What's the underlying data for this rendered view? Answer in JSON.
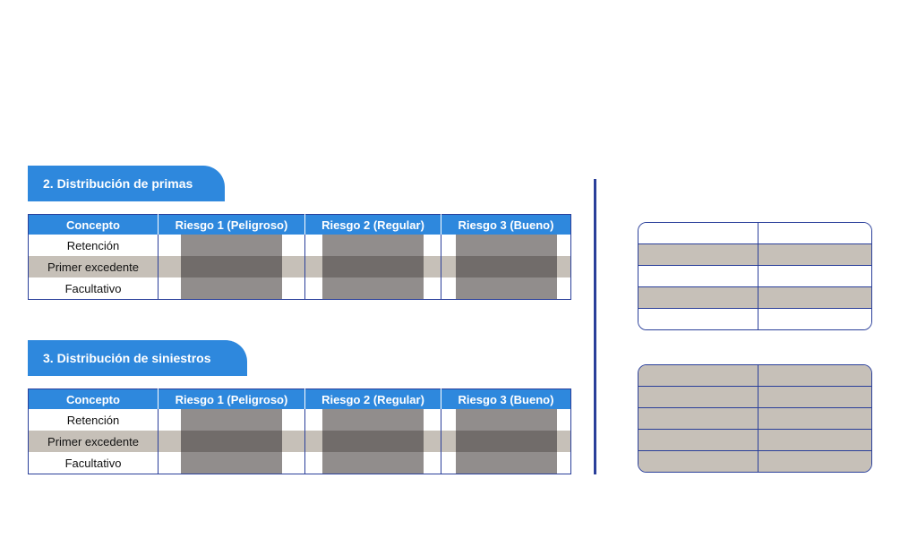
{
  "section_primas": {
    "title": "2. Distribución de primas",
    "headers": [
      "Concepto",
      "Riesgo 1 (Peligroso)",
      "Riesgo 2 (Regular)",
      "Riesgo 3 (Bueno)"
    ],
    "rows": [
      "Retención",
      "Primer excedente",
      "Facultativo"
    ]
  },
  "section_siniestros": {
    "title": "3.  Distribución de siniestros",
    "headers": [
      "Concepto",
      "Riesgo 1 (Peligroso)",
      "Riesgo 2 (Regular)",
      "Riesgo 3 (Bueno)"
    ],
    "rows": [
      "Retención",
      "Primer excedente",
      "Facultativo"
    ]
  },
  "colors": {
    "accent_blue": "#2e88dd",
    "border_navy": "#2a3f9a",
    "row_shade": "#c6c0b8",
    "box_gray": "#918d8c",
    "box_dark": "#716c6a"
  }
}
